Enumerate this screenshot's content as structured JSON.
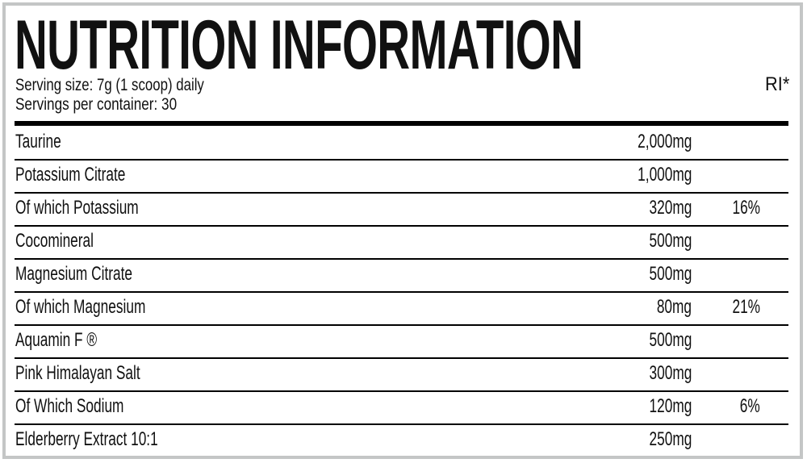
{
  "label": {
    "title": "NUTRITION INFORMATION",
    "serving_size": "Serving size: 7g (1 scoop) daily",
    "servings_per_container": "Servings per container: 30",
    "ri_header": "RI*",
    "border_color": "#c4c6c6",
    "rows": [
      {
        "name": "Taurine",
        "amount": "2,000mg",
        "ri": ""
      },
      {
        "name": "Potassium Citrate",
        "amount": "1,000mg",
        "ri": ""
      },
      {
        "name": "Of which Potassium",
        "amount": "320mg",
        "ri": "16%"
      },
      {
        "name": "Cocomineral",
        "amount": "500mg",
        "ri": ""
      },
      {
        "name": "Magnesium Citrate",
        "amount": "500mg",
        "ri": ""
      },
      {
        "name": "Of which Magnesium",
        "amount": "80mg",
        "ri": "21%"
      },
      {
        "name": "Aquamin F ®",
        "amount": "500mg",
        "ri": ""
      },
      {
        "name": "Pink Himalayan Salt",
        "amount": "300mg",
        "ri": ""
      },
      {
        "name": "Of Which Sodium",
        "amount": "120mg",
        "ri": "6%"
      },
      {
        "name": "Elderberry Extract 10:1",
        "amount": "250mg",
        "ri": ""
      }
    ]
  }
}
